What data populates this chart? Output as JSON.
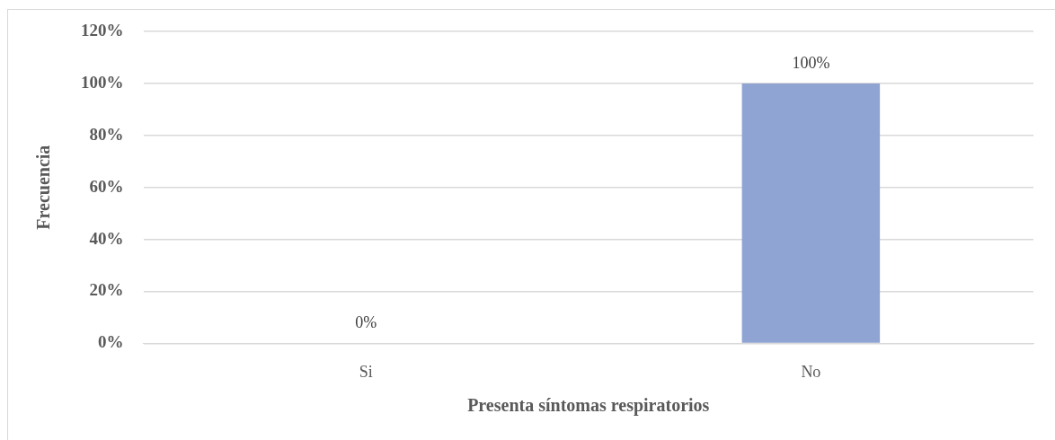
{
  "chart_data": {
    "type": "bar",
    "xlabel": "Presenta síntomas respiratorios",
    "ylabel": "Frecuencia",
    "categories": [
      "Si",
      "No"
    ],
    "values": [
      0,
      100
    ],
    "color": "#8fa4d3",
    "value_labels": [
      "0%",
      "100%"
    ],
    "ylim": [
      0,
      120
    ],
    "yticks": [
      {
        "value": 0,
        "label": "0%"
      },
      {
        "value": 20,
        "label": "20%"
      },
      {
        "value": 40,
        "label": "40%"
      },
      {
        "value": 60,
        "label": "60%"
      },
      {
        "value": 80,
        "label": "80%"
      },
      {
        "value": 100,
        "label": "100%"
      },
      {
        "value": 120,
        "label": "120%"
      }
    ],
    "grid": "y"
  }
}
